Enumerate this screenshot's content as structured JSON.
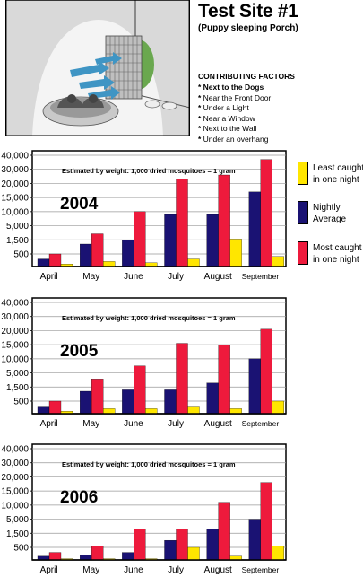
{
  "header": {
    "title": "Test Site #1",
    "subtitle": "(Puppy sleeping Porch)",
    "factors_title": "CONTRIBUTING FACTORS",
    "factors": [
      {
        "text": "Next to the Dogs",
        "bold": true
      },
      {
        "text": "Near the Front Door",
        "bold": false
      },
      {
        "text": "Under a Light",
        "bold": false
      },
      {
        "text": "Near a Window",
        "bold": false
      },
      {
        "text": "Next to the Wall",
        "bold": false
      },
      {
        "text": "Under an overhang",
        "bold": false
      }
    ]
  },
  "illustration": {
    "description_icons": [
      "porch-wall",
      "light-cone",
      "bug-zapper-cage",
      "fan-arrows",
      "sleeping-dogs",
      "dog-bowls"
    ]
  },
  "legend": [
    {
      "name": "Least caught in one night",
      "color": "#FFE600"
    },
    {
      "name": "Nightly Average",
      "color": "#1A1273"
    },
    {
      "name": "Most caught in one night",
      "color": "#EE1A3C"
    }
  ],
  "chart_data": [
    {
      "type": "bar",
      "title": "2004",
      "note": "Estimated by weight:  1,000 dried mosquitoes = 1 gram",
      "categories": [
        "April",
        "May",
        "June",
        "July",
        "August",
        "September"
      ],
      "y_ticks": [
        "500",
        "1,500",
        "5,000",
        "10,000",
        "15,000",
        "20,000",
        "30,000",
        "40,000"
      ],
      "series": [
        {
          "name": "Nightly Average",
          "values": [
            300,
            1200,
            1500,
            9000,
            9000,
            17000
          ]
        },
        {
          "name": "Most caught in one night",
          "values": [
            500,
            3000,
            10000,
            23000,
            26000,
            37000
          ]
        },
        {
          "name": "Least caught in one night",
          "values": [
            100,
            200,
            150,
            300,
            1700,
            400
          ]
        }
      ]
    },
    {
      "type": "bar",
      "title": "2005",
      "note": "Estimated by weight:  1,000 dried mosquitoes = 1 gram",
      "categories": [
        "April",
        "May",
        "June",
        "July",
        "August",
        "September"
      ],
      "y_ticks": [
        "500",
        "1,500",
        "5,000",
        "10,000",
        "15,000",
        "20,000",
        "30,000",
        "40,000"
      ],
      "series": [
        {
          "name": "Nightly Average",
          "values": [
            300,
            1200,
            1300,
            1300,
            2500,
            10000
          ]
        },
        {
          "name": "Most caught in one night",
          "values": [
            500,
            3500,
            7500,
            15500,
            15000,
            21000
          ]
        },
        {
          "name": "Least caught in one night",
          "values": [
            100,
            200,
            200,
            300,
            200,
            500
          ]
        }
      ]
    },
    {
      "type": "bar",
      "title": "2006",
      "note": "Estimated by weight:  1,000 dried mosquitoes = 1 gram",
      "categories": [
        "April",
        "May",
        "June",
        "July",
        "August",
        "September"
      ],
      "y_ticks": [
        "500",
        "1,500",
        "5,000",
        "10,000",
        "15,000",
        "20,000",
        "30,000",
        "40,000"
      ],
      "series": [
        {
          "name": "Nightly Average",
          "values": [
            150,
            200,
            300,
            1000,
            2500,
            5000
          ]
        },
        {
          "name": "Most caught in one night",
          "values": [
            300,
            600,
            2500,
            2500,
            11000,
            18000
          ]
        },
        {
          "name": "Least caught in one night",
          "values": [
            50,
            50,
            50,
            500,
            150,
            600
          ]
        }
      ]
    }
  ]
}
